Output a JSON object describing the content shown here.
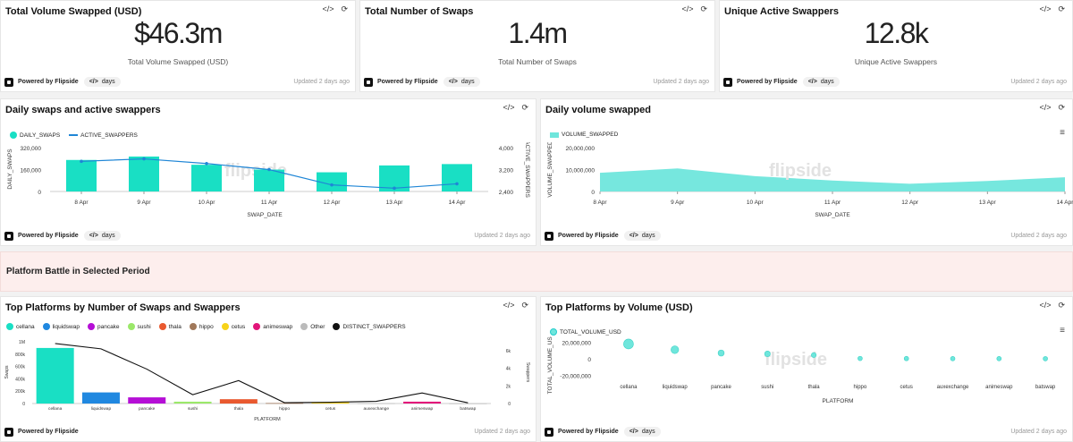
{
  "kpis": [
    {
      "title": "Total Volume Swapped (USD)",
      "value": "$46.3m",
      "subtitle": "Total Volume Swapped (USD)"
    },
    {
      "title": "Total Number of Swaps",
      "value": "1.4m",
      "subtitle": "Total Number of Swaps"
    },
    {
      "title": "Unique Active Swappers",
      "value": "12.8k",
      "subtitle": "Unique Active Swappers"
    }
  ],
  "footer": {
    "powered": "Powered by Flipside",
    "pill_icon": "</>",
    "pill_label": "days",
    "updated": "Updated 2 days ago"
  },
  "icons": {
    "code": "</>",
    "refresh": "⟳",
    "menu": "≡"
  },
  "banner": {
    "title": "Platform Battle in Selected Period"
  },
  "watermark": "flipside",
  "chart1": {
    "title": "Daily swaps and active swappers",
    "legend": [
      "DAILY_SWAPS",
      "ACTIVE_SWAPPERS"
    ],
    "ylabel": "DAILY_SWAPS",
    "y2label": "ACTIVE_SWAPPERS",
    "xlabel": "SWAP_DATE",
    "yticks": [
      "320,000",
      "160,000",
      "0"
    ],
    "y2ticks": [
      "4,000",
      "3,200",
      "2,400"
    ]
  },
  "chart2": {
    "title": "Daily volume swapped",
    "legend": [
      "VOLUME_SWAPPED"
    ],
    "ylabel": "VOLUME_SWAPPED",
    "xlabel": "SWAP_DATE",
    "yticks": [
      "20,000,000",
      "10,000,000",
      "0"
    ]
  },
  "chart3": {
    "title": "Top Platforms by Number of Swaps and Swappers",
    "legend": [
      "cellana",
      "liquidswap",
      "pancake",
      "sushi",
      "thala",
      "hippo",
      "cetus",
      "animeswap",
      "Other",
      "DISTINCT_SWAPPERS"
    ],
    "ylabel": "Swaps",
    "y2label": "Swappers",
    "xlabel": "PLATFORM",
    "yticks": [
      "1M",
      "800k",
      "600k",
      "400k",
      "200k",
      "0"
    ],
    "y2ticks": [
      "6k",
      "4k",
      "2k",
      "0"
    ]
  },
  "chart4": {
    "title": "Top Platforms by Volume (USD)",
    "legend": [
      "TOTAL_VOLUME_USD"
    ],
    "ylabel": "TOTAL_VOLUME_USD",
    "xlabel": "PLATFORM",
    "yticks": [
      "20,000,000",
      "0",
      "-20,000,000"
    ]
  },
  "chart_data": [
    {
      "type": "bar",
      "categories": [
        "8 Apr",
        "9 Apr",
        "10 Apr",
        "11 Apr",
        "12 Apr",
        "13 Apr",
        "14 Apr"
      ],
      "series": [
        {
          "name": "DAILY_SWAPS",
          "values": [
            230000,
            255000,
            195000,
            160000,
            140000,
            190000,
            200000
          ]
        },
        {
          "name": "ACTIVE_SWAPPERS",
          "values": [
            3500,
            3590,
            3420,
            3200,
            2640,
            2520,
            2680
          ]
        }
      ],
      "ylim": [
        0,
        320000
      ],
      "y2lim": [
        2400,
        4000
      ],
      "colors": [
        "#19dfc4",
        "#1f86d6"
      ]
    },
    {
      "type": "area",
      "categories": [
        "8 Apr",
        "9 Apr",
        "10 Apr",
        "11 Apr",
        "12 Apr",
        "13 Apr",
        "14 Apr"
      ],
      "series": [
        {
          "name": "VOLUME_SWAPPED",
          "values": [
            8500000,
            10500000,
            7000000,
            5000000,
            3500000,
            4800000,
            6500000
          ]
        }
      ],
      "ylim": [
        0,
        20000000
      ],
      "colors": [
        "#6fe6dc"
      ]
    },
    {
      "type": "bar",
      "categories": [
        "cellana",
        "liquidswap",
        "pancake",
        "sushi",
        "thala",
        "hippo",
        "cetus",
        "auxexchange",
        "animeswap",
        "batswap"
      ],
      "series": [
        {
          "name": "Swaps",
          "values": [
            900000,
            180000,
            100000,
            30000,
            70000,
            8000,
            20000,
            5000,
            30000,
            3000
          ]
        },
        {
          "name": "DISTINCT_SWAPPERS",
          "values": [
            6800,
            6200,
            3900,
            1000,
            2600,
            100,
            150,
            250,
            1200,
            80
          ]
        }
      ],
      "bar_colors": [
        "#19dfc4",
        "#2088e0",
        "#b50fd6",
        "#9be86a",
        "#e9592f",
        "#a0785a",
        "#f7d31a",
        "#bbbbbb",
        "#e2167a",
        "#bbbbbb"
      ],
      "ylim": [
        0,
        1000000
      ],
      "y2lim": [
        0,
        7000
      ]
    },
    {
      "type": "scatter",
      "categories": [
        "cellana",
        "liquidswap",
        "pancake",
        "sushi",
        "thala",
        "hippo",
        "cetus",
        "auxexchange",
        "animeswap",
        "batswap"
      ],
      "series": [
        {
          "name": "TOTAL_VOLUME_USD",
          "values": [
            18000000,
            11000000,
            7000000,
            6000000,
            4500000,
            400000,
            300000,
            200000,
            200000,
            100000
          ]
        }
      ],
      "ylim": [
        -25000000,
        25000000
      ],
      "colors": [
        "#6fe6dc"
      ]
    }
  ]
}
